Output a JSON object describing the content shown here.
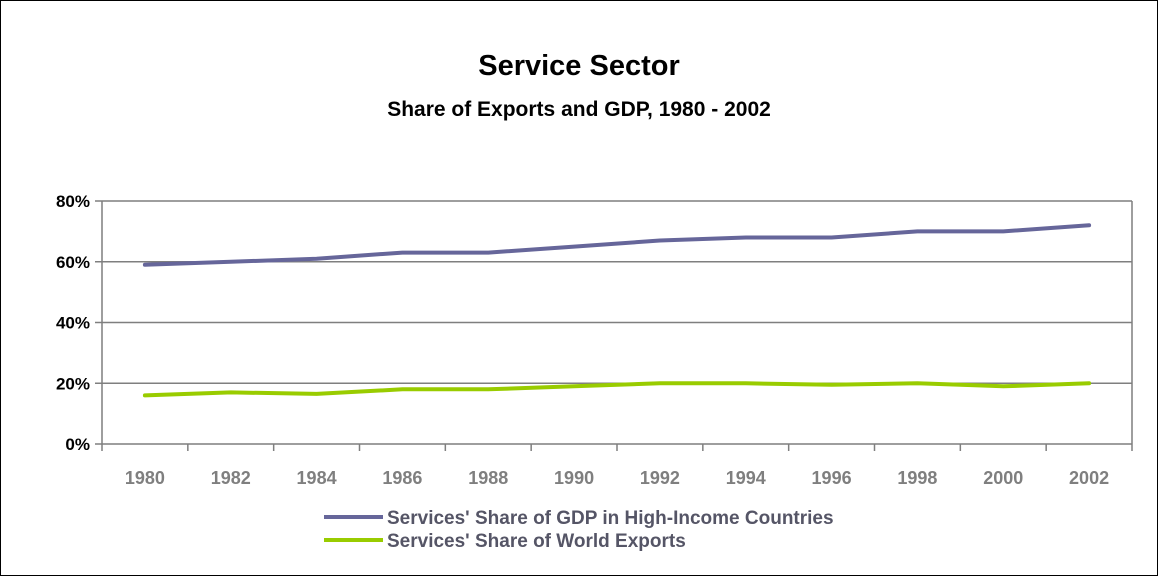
{
  "chart_data": {
    "type": "line",
    "title": "Service Sector",
    "subtitle": "Share of Exports and GDP, 1980 - 2002",
    "xlabel": "",
    "ylabel": "",
    "categories": [
      "1980",
      "1982",
      "1984",
      "1986",
      "1988",
      "1990",
      "1992",
      "1994",
      "1996",
      "1998",
      "2000",
      "2002"
    ],
    "ylim": [
      0,
      80
    ],
    "yticks": [
      0,
      20,
      40,
      60,
      80
    ],
    "ytick_labels": [
      "0%",
      "20%",
      "40%",
      "60%",
      "80%"
    ],
    "grid": true,
    "legend_position": "bottom",
    "series": [
      {
        "name": "Services' Share of GDP in High-Income Countries",
        "color": "#66669a",
        "values": [
          59,
          60,
          61,
          63,
          63,
          65,
          67,
          68,
          68,
          70,
          70,
          72
        ]
      },
      {
        "name": "Services' Share of World Exports",
        "color": "#99cc00",
        "values": [
          16,
          17,
          16.5,
          18,
          18,
          19,
          20,
          20,
          19.5,
          20,
          19,
          20
        ]
      }
    ]
  }
}
